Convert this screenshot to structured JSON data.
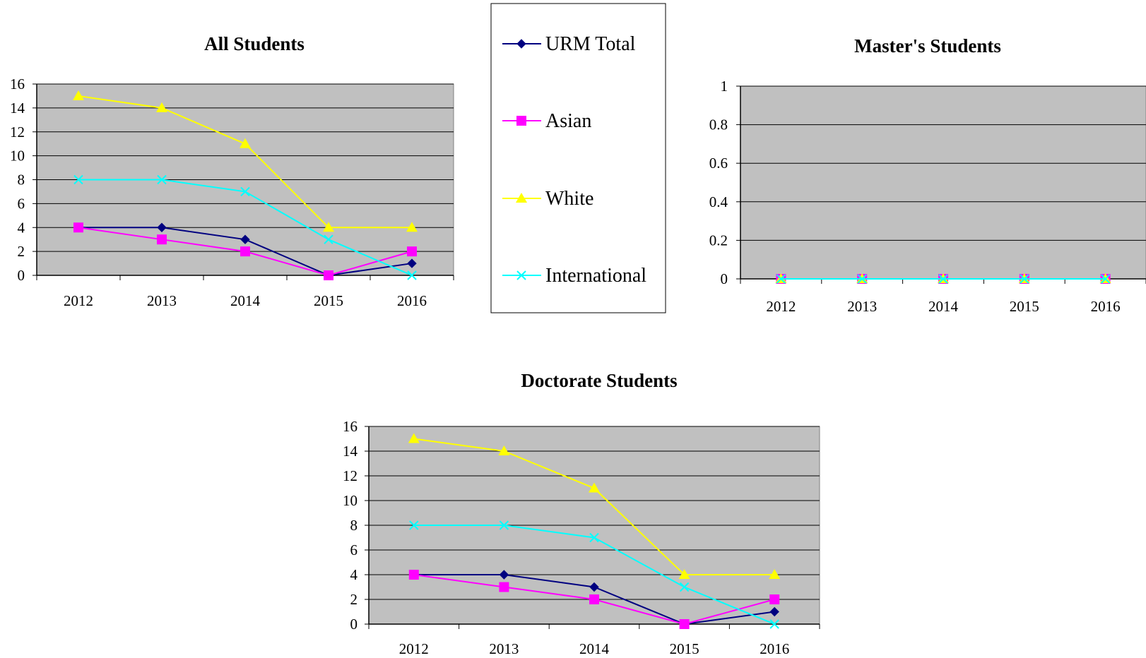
{
  "legend": {
    "entries": [
      {
        "name": "URM Total",
        "color": "#000080",
        "marker": "diamond"
      },
      {
        "name": "Asian",
        "color": "#ff00ff",
        "marker": "square"
      },
      {
        "name": "White",
        "color": "#ffff00",
        "marker": "triangle"
      },
      {
        "name": "International",
        "color": "#00ffff",
        "marker": "x"
      }
    ]
  },
  "style": {
    "plot_background": "#c0c0c0",
    "gridline_color": "#000000"
  },
  "chart_data": [
    {
      "type": "line",
      "title": "All Students",
      "categories": [
        "2012",
        "2013",
        "2014",
        "2015",
        "2016"
      ],
      "ylim": [
        0,
        16
      ],
      "yticks": [
        "0",
        "2",
        "4",
        "6",
        "8",
        "10",
        "12",
        "14",
        "16"
      ],
      "grid": true,
      "legend": "shared-right",
      "series": [
        {
          "name": "URM Total",
          "values": [
            4,
            4,
            3,
            0,
            1
          ]
        },
        {
          "name": "Asian",
          "values": [
            4,
            3,
            2,
            0,
            2
          ]
        },
        {
          "name": "White",
          "values": [
            15,
            14,
            11,
            4,
            4
          ]
        },
        {
          "name": "International",
          "values": [
            8,
            8,
            7,
            3,
            0
          ]
        }
      ]
    },
    {
      "type": "line",
      "title": "Master's Students",
      "categories": [
        "2012",
        "2013",
        "2014",
        "2015",
        "2016"
      ],
      "ylim": [
        0,
        1
      ],
      "yticks": [
        "0",
        "0.2",
        "0.4",
        "0.6",
        "0.8",
        "1"
      ],
      "grid": true,
      "legend": "shared-left",
      "series": [
        {
          "name": "URM Total",
          "values": [
            0,
            0,
            0,
            0,
            0
          ]
        },
        {
          "name": "Asian",
          "values": [
            0,
            0,
            0,
            0,
            0
          ]
        },
        {
          "name": "White",
          "values": [
            0,
            0,
            0,
            0,
            0
          ]
        },
        {
          "name": "International",
          "values": [
            0,
            0,
            0,
            0,
            0
          ]
        }
      ]
    },
    {
      "type": "line",
      "title": "Doctorate Students",
      "categories": [
        "2012",
        "2013",
        "2014",
        "2015",
        "2016"
      ],
      "ylim": [
        0,
        16
      ],
      "yticks": [
        "0",
        "2",
        "4",
        "6",
        "8",
        "10",
        "12",
        "14",
        "16"
      ],
      "grid": true,
      "legend": "shared-above",
      "series": [
        {
          "name": "URM Total",
          "values": [
            4,
            4,
            3,
            0,
            1
          ]
        },
        {
          "name": "Asian",
          "values": [
            4,
            3,
            2,
            0,
            2
          ]
        },
        {
          "name": "White",
          "values": [
            15,
            14,
            11,
            4,
            4
          ]
        },
        {
          "name": "International",
          "values": [
            8,
            8,
            7,
            3,
            0
          ]
        }
      ]
    }
  ]
}
